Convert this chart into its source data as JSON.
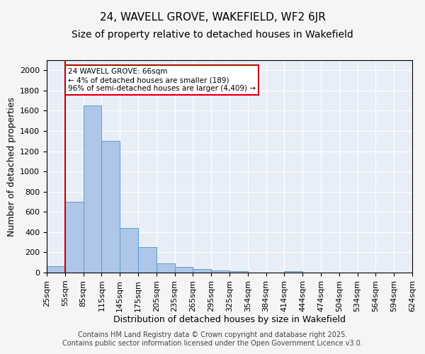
{
  "title1": "24, WAVELL GROVE, WAKEFIELD, WF2 6JR",
  "title2": "Size of property relative to detached houses in Wakefield",
  "xlabel": "Distribution of detached houses by size in Wakefield",
  "ylabel": "Number of detached properties",
  "bar_values": [
    65,
    700,
    1650,
    1300,
    440,
    255,
    90,
    55,
    35,
    22,
    12,
    0,
    0,
    12,
    0,
    0,
    0,
    0,
    0,
    0
  ],
  "bar_labels": [
    "25sqm",
    "55sqm",
    "85sqm",
    "115sqm",
    "145sqm",
    "175sqm",
    "205sqm",
    "235sqm",
    "265sqm",
    "295sqm",
    "325sqm",
    "354sqm",
    "384sqm",
    "414sqm",
    "444sqm",
    "474sqm",
    "504sqm",
    "534sqm",
    "564sqm",
    "594sqm",
    "624sqm"
  ],
  "bar_color": "#aec6e8",
  "bar_edge_color": "#5a9fd4",
  "background_color": "#e8eef8",
  "grid_color": "#ffffff",
  "red_line_x": 1,
  "annotation_text": "24 WAVELL GROVE: 66sqm\n← 4% of detached houses are smaller (189)\n96% of semi-detached houses are larger (4,409) →",
  "annotation_box_color": "#ffffff",
  "annotation_box_edge": "#cc0000",
  "ylim": [
    0,
    2100
  ],
  "yticks": [
    0,
    200,
    400,
    600,
    800,
    1000,
    1200,
    1400,
    1600,
    1800,
    2000
  ],
  "footer_text": "Contains HM Land Registry data © Crown copyright and database right 2025.\nContains public sector information licensed under the Open Government Licence v3.0.",
  "title1_fontsize": 11,
  "title2_fontsize": 10,
  "xlabel_fontsize": 9,
  "ylabel_fontsize": 9,
  "tick_fontsize": 8,
  "footer_fontsize": 7
}
